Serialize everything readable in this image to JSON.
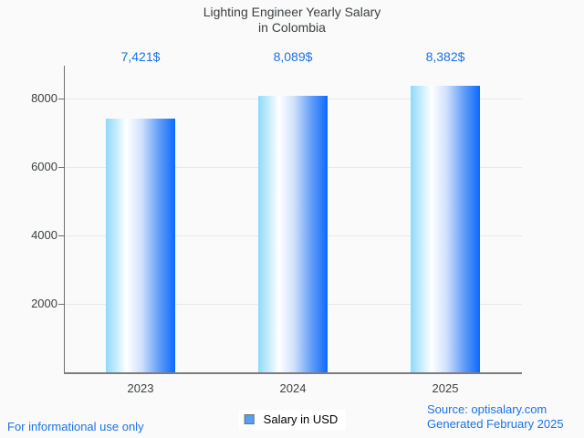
{
  "title": {
    "line1": "Lighting Engineer Yearly Salary",
    "line2": "in Colombia"
  },
  "chart_data": {
    "type": "bar",
    "title": "Lighting Engineer Yearly Salary in Colombia",
    "categories": [
      "2023",
      "2024",
      "2025"
    ],
    "series": [
      {
        "name": "Salary in USD",
        "values": [
          7421,
          8089,
          8382
        ]
      }
    ],
    "value_labels": [
      "7,421$",
      "8,089$",
      "8,382$"
    ],
    "ylabel": "",
    "xlabel": "",
    "yticks": [
      2000,
      4000,
      6000,
      8000
    ],
    "ytick_labels": [
      "2000",
      "4000",
      "6000",
      "8000"
    ],
    "ylim": [
      0,
      8960
    ],
    "grid": true,
    "legend_position": "bottom",
    "bar_gradient": [
      {
        "color": "#8ed9fc",
        "pos": 0
      },
      {
        "color": "#ffffff",
        "pos": 30
      },
      {
        "color": "#cfe0fc",
        "pos": 52
      },
      {
        "color": "#669ff8",
        "pos": 76
      },
      {
        "color": "#0c6afc",
        "pos": 100
      }
    ]
  },
  "legend": {
    "label": "Salary in USD",
    "swatch_fill": "#55a0f0"
  },
  "footer": {
    "left": "For informational use only",
    "source_line": "Source: optisalary.com",
    "generated_line": "Generated February 2025"
  },
  "colors": {
    "accent_blue": "#1a73e8",
    "title_text": "#3c4043",
    "axis_text": "#3c4043",
    "axis_line": "#6f6f6f",
    "gridline": "#e8e8e8",
    "background": "#fafafa"
  }
}
